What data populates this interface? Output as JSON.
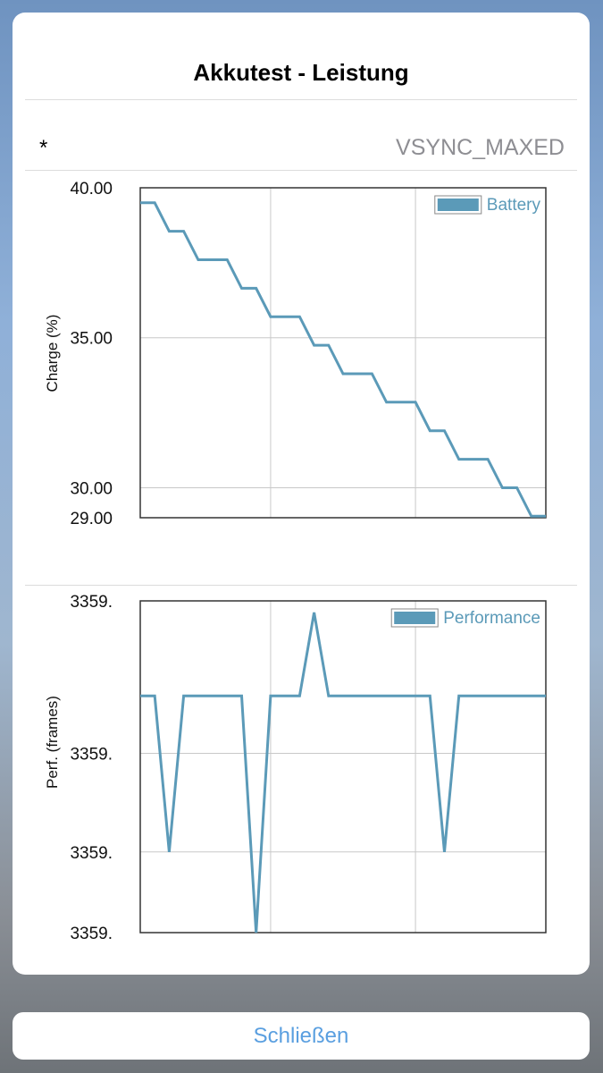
{
  "dialog": {
    "title": "Akkutest - Leistung",
    "row_label": "*",
    "row_value": "VSYNC_MAXED",
    "close_label": "Schließen"
  },
  "colors": {
    "series": "#5b9ab8",
    "accent": "#5a9fe0"
  },
  "chart_data": [
    {
      "type": "line",
      "title": "",
      "ylabel": "Charge (%)",
      "xlabel": "",
      "ylim": [
        29.0,
        40.0
      ],
      "yticks": [
        40.0,
        35.0,
        30.0,
        29.0
      ],
      "ytick_labels": [
        "40.00",
        "35.00",
        "30.00",
        "29.00"
      ],
      "xgrid": [
        9,
        19
      ],
      "legend": "top-right",
      "series": [
        {
          "name": "Battery",
          "x": [
            0,
            1,
            2,
            3,
            4,
            5,
            6,
            7,
            8,
            9,
            10,
            11,
            12,
            13,
            14,
            15,
            16,
            17,
            18,
            19,
            20,
            21,
            22,
            23,
            24,
            25,
            26,
            27,
            28
          ],
          "values": [
            39.5,
            39.5,
            38.55,
            38.55,
            37.6,
            37.6,
            37.6,
            36.65,
            36.65,
            35.7,
            35.7,
            35.7,
            34.75,
            34.75,
            33.8,
            33.8,
            33.8,
            32.85,
            32.85,
            32.85,
            31.9,
            31.9,
            30.95,
            30.95,
            30.95,
            30.0,
            30.0,
            29.05,
            29.05
          ]
        }
      ]
    },
    {
      "type": "line",
      "title": "",
      "ylabel": "Perf. (frames)",
      "xlabel": "",
      "ylim": [
        3359.0,
        3359.37
      ],
      "yticks": [
        3359.37,
        3359.2,
        3359.09,
        3359.0
      ],
      "ytick_labels": [
        "3359.",
        "3359.",
        "3359.",
        "3359."
      ],
      "xgrid": [
        9,
        19
      ],
      "legend": "top-right",
      "series": [
        {
          "name": "Performance",
          "x": [
            0,
            1,
            2,
            3,
            4,
            5,
            6,
            7,
            8,
            9,
            10,
            11,
            12,
            13,
            14,
            15,
            16,
            17,
            18,
            19,
            20,
            21,
            22,
            23,
            24,
            25,
            26,
            27,
            28
          ],
          "values": [
            3359.264,
            3359.264,
            3359.09,
            3359.264,
            3359.264,
            3359.264,
            3359.264,
            3359.264,
            3359.0,
            3359.264,
            3359.264,
            3359.264,
            3359.357,
            3359.264,
            3359.264,
            3359.264,
            3359.264,
            3359.264,
            3359.264,
            3359.264,
            3359.264,
            3359.09,
            3359.264,
            3359.264,
            3359.264,
            3359.264,
            3359.264,
            3359.264,
            3359.264
          ]
        }
      ]
    }
  ]
}
